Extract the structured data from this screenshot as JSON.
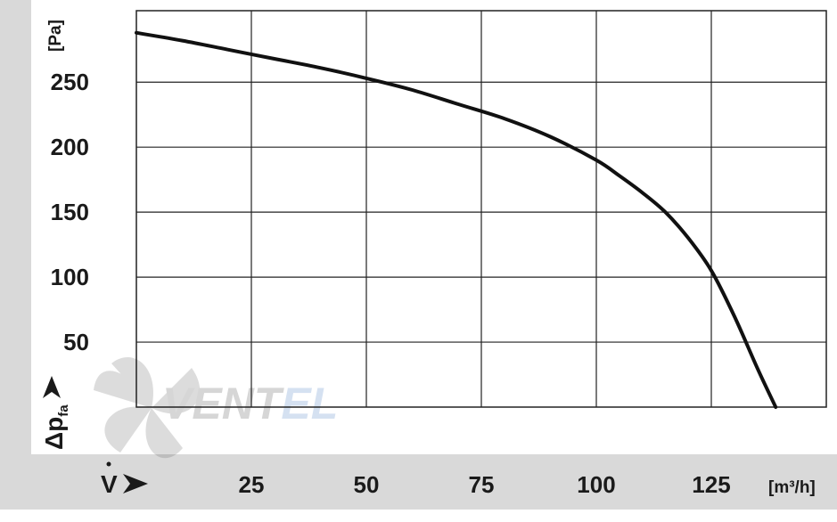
{
  "chart_data": {
    "type": "line",
    "title": "",
    "xlabel": {
      "symbol": "V",
      "unit": "[m³/h]"
    },
    "ylabel": {
      "symbol": "Δp",
      "subscript": "fa",
      "unit": "[Pa]"
    },
    "xlim": [
      0,
      150
    ],
    "ylim": [
      0,
      305
    ],
    "x_ticks": [
      25,
      50,
      75,
      100,
      125
    ],
    "y_ticks": [
      50,
      100,
      150,
      200,
      250
    ],
    "grid": true,
    "series": [
      {
        "x": [
          0,
          10,
          20,
          30,
          40,
          50,
          60,
          70,
          80,
          90,
          100,
          105,
          110,
          115,
          120,
          125,
          130,
          135,
          139
        ],
        "y": [
          288,
          282,
          275,
          268,
          261,
          253,
          244,
          233,
          222,
          208,
          190,
          178,
          165,
          150,
          130,
          105,
          70,
          30,
          0
        ]
      }
    ],
    "colors": {
      "line": "#111111",
      "grid": "#222222",
      "axis_band": "#d9d9d9"
    }
  },
  "watermark": {
    "text_dark": "VENT",
    "text_blue": "EL"
  }
}
